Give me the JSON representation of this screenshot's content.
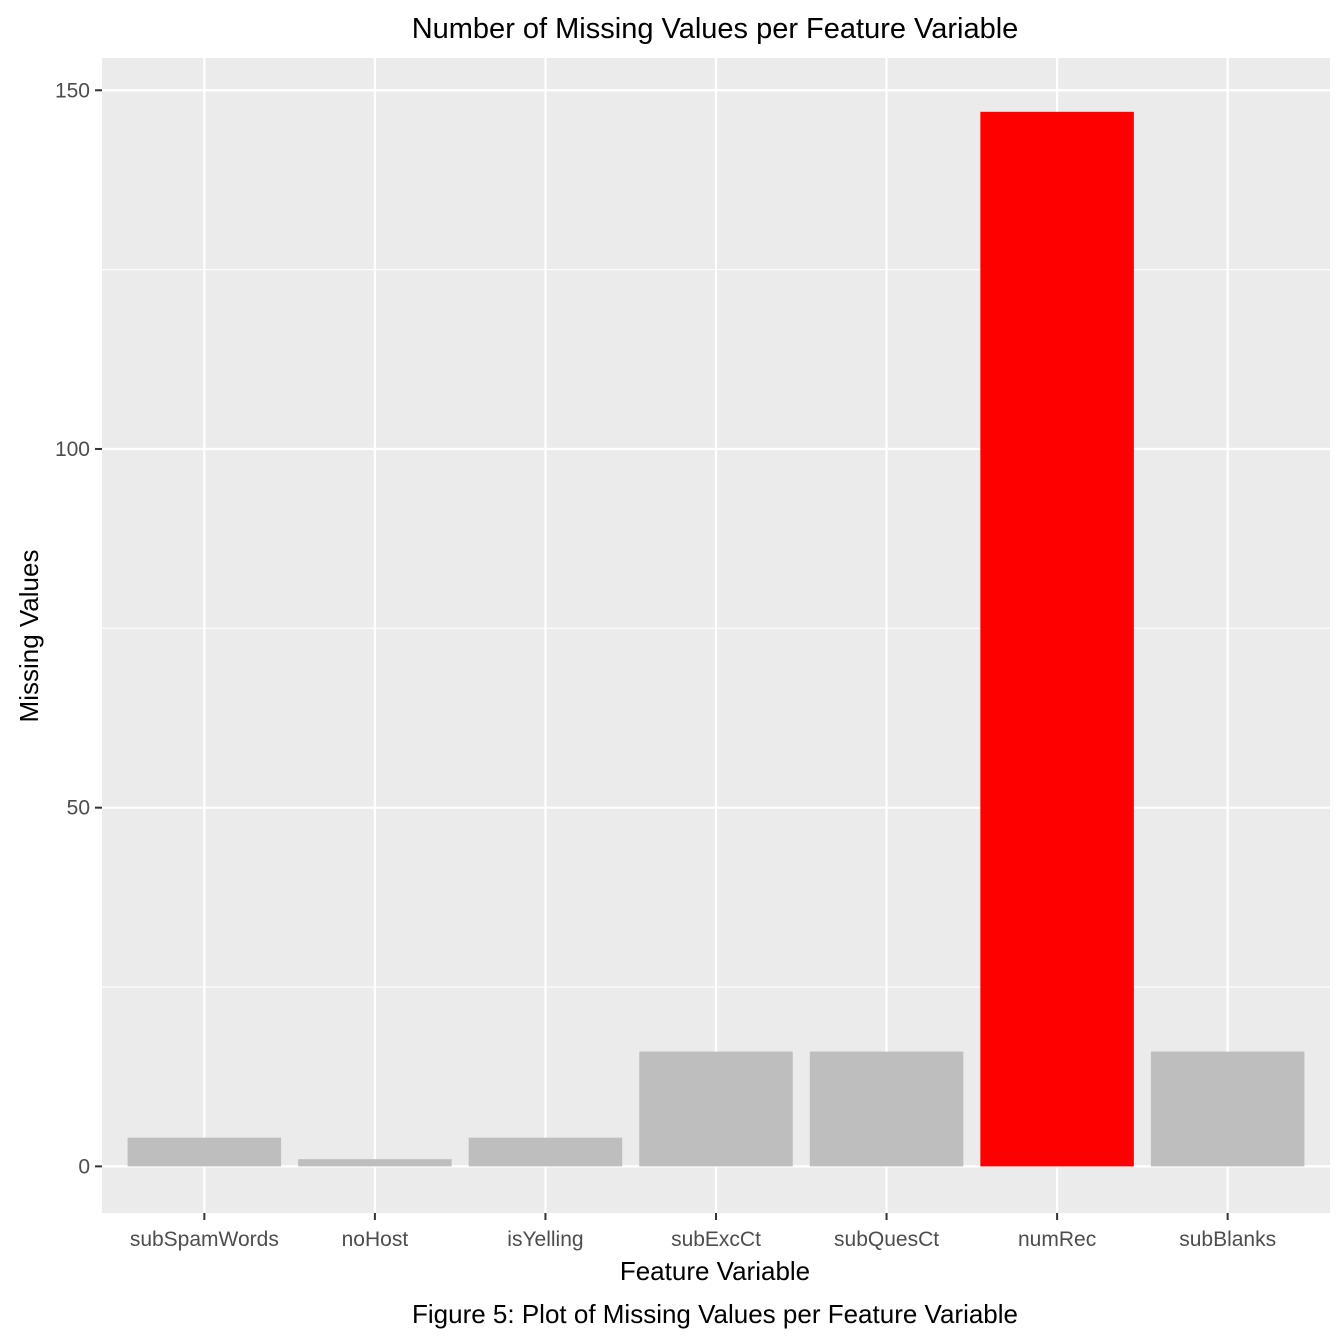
{
  "chart_data": {
    "type": "bar",
    "title": "Number of Missing Values per Feature Variable",
    "xlabel": "Feature Variable",
    "ylabel": "Missing Values",
    "categories": [
      "subSpamWords",
      "noHost",
      "isYelling",
      "subExcCt",
      "subQuesCt",
      "numRec",
      "subBlanks"
    ],
    "values": [
      4,
      1,
      4,
      16,
      16,
      147,
      16
    ],
    "colors": [
      "#bebebe",
      "#bebebe",
      "#bebebe",
      "#bebebe",
      "#bebebe",
      "#ff0000",
      "#bebebe"
    ],
    "ylim": [
      -6.5,
      154.5
    ],
    "yticks": [
      0,
      50,
      100,
      150
    ],
    "grid": true,
    "panel_background": "#ebebeb",
    "legend": "none"
  },
  "caption": "Figure 5: Plot of Missing Values per Feature Variable"
}
